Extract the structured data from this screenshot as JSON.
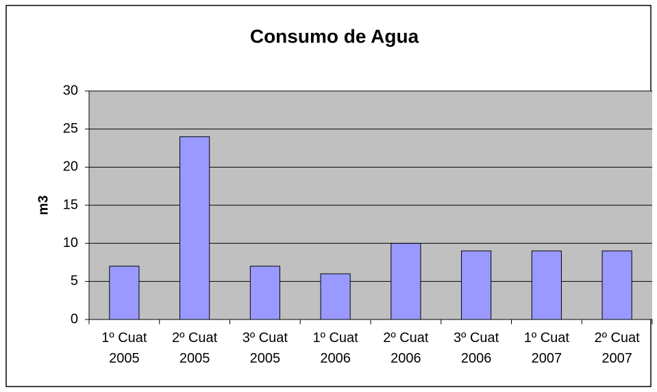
{
  "chart_data": {
    "type": "bar",
    "title": "Consumo de Agua",
    "ylabel": "m3",
    "categories": [
      "1º Cuat 2005",
      "2º Cuat 2005",
      "3º Cuat 2005",
      "1º Cuat 2006",
      "2º Cuat 2006",
      "3º Cuat 2006",
      "1º Cuat 2007",
      "2º Cuat 2007"
    ],
    "values": [
      7,
      24,
      7,
      6,
      10,
      9,
      9,
      9
    ],
    "color": "#9999ff",
    "background": "#c0c0c0",
    "ylim": [
      0,
      30
    ],
    "yticks": [
      0,
      5,
      10,
      15,
      20,
      25,
      30
    ],
    "grid": true
  }
}
